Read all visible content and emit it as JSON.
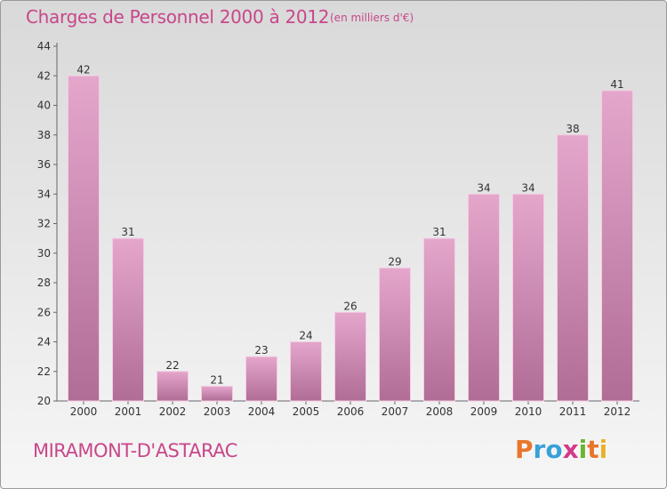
{
  "header": {
    "title": "Charges de Personnel 2000 à 2012",
    "subtitle": "(en milliers d'€)"
  },
  "footer": {
    "place": "MIRAMONT-D'ASTARAC",
    "logo": {
      "text": "Proxiti",
      "colors": [
        "#e8762c",
        "#3aa0d8",
        "#3aa0d8",
        "#d23a8a",
        "#6ab532",
        "#e8762c",
        "#e8b02c"
      ]
    }
  },
  "colors": {
    "bar_top": "#e5a6cc",
    "bar_bottom": "#b06d96",
    "accent": "#c8478a"
  },
  "chart_data": {
    "type": "bar",
    "title": "Charges de Personnel 2000 à 2012",
    "subtitle": "(en milliers d'€)",
    "categories": [
      "2000",
      "2001",
      "2002",
      "2003",
      "2004",
      "2005",
      "2006",
      "2007",
      "2008",
      "2009",
      "2010",
      "2011",
      "2012"
    ],
    "values": [
      42,
      31,
      22,
      21,
      23,
      24,
      26,
      29,
      31,
      34,
      34,
      38,
      41
    ],
    "ylim": [
      20,
      44
    ],
    "yticks": [
      20,
      22,
      24,
      26,
      28,
      30,
      32,
      34,
      36,
      38,
      40,
      42,
      44
    ],
    "grid": false,
    "legend": "none"
  }
}
